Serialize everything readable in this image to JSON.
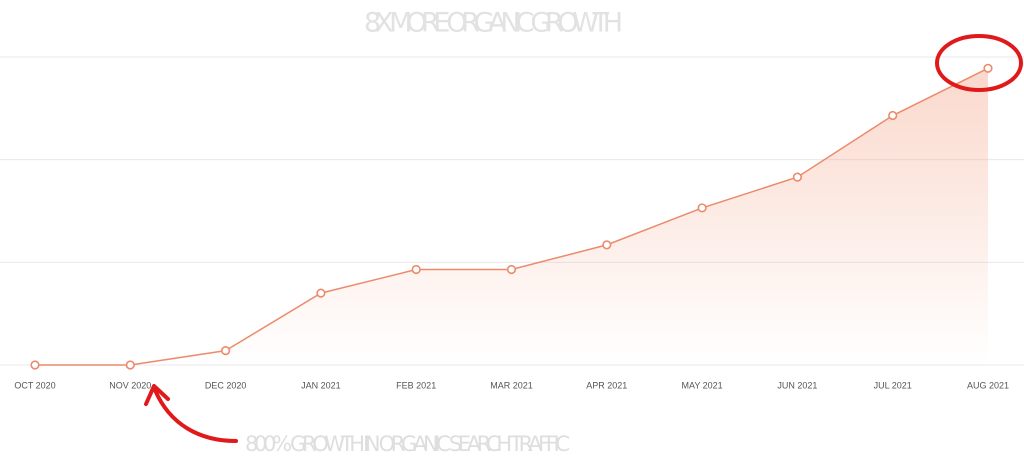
{
  "chart_data": {
    "type": "line",
    "title": "8X MORE ORGANIC GROWTH",
    "annotation": "800% GROWTH IN ORGANIC SEARCH TRAFFIC",
    "categories": [
      "OCT 2020",
      "NOV 2020",
      "DEC 2020",
      "JAN 2021",
      "FEB 2021",
      "MAR 2021",
      "APR 2021",
      "MAY 2021",
      "JUN 2021",
      "JUL 2021",
      "AUG 2021"
    ],
    "values": [
      0,
      0,
      0.14,
      0.7,
      0.93,
      0.93,
      1.17,
      1.53,
      1.83,
      2.43,
      2.89
    ],
    "color": "#ec8a6c",
    "ylim": [
      0,
      3
    ],
    "yticks": [
      0,
      1,
      2,
      3
    ],
    "grid": true
  }
}
